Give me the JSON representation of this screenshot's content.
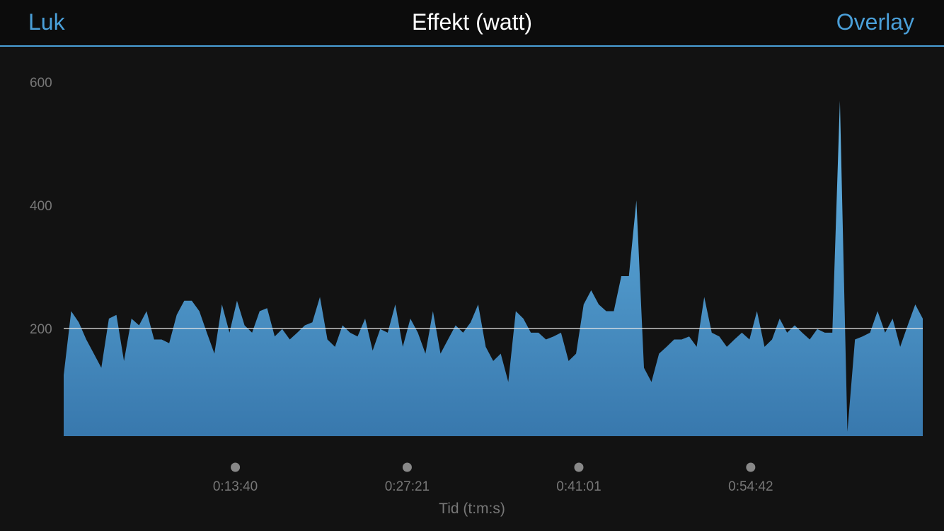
{
  "header": {
    "left_button": "Luk",
    "title": "Effekt (watt)",
    "right_button": "Overlay"
  },
  "chart_data": {
    "type": "area",
    "x_label": "Tid (t:m:s)",
    "x": [
      0,
      36,
      72,
      108,
      144,
      180,
      216,
      252,
      288,
      324,
      360,
      396,
      432,
      468,
      504,
      540,
      576,
      612,
      648,
      684,
      720,
      756,
      792,
      828,
      864,
      900,
      936,
      972,
      1008,
      1044,
      1080,
      1116,
      1152,
      1188,
      1224,
      1260,
      1296,
      1332,
      1368,
      1404,
      1440,
      1476,
      1512,
      1548,
      1584,
      1620,
      1656,
      1692,
      1728,
      1764,
      1800,
      1836,
      1872,
      1908,
      1944,
      1980,
      2016,
      2052,
      2088,
      2124,
      2160,
      2196,
      2232,
      2268,
      2304,
      2340,
      2376,
      2412,
      2448,
      2484,
      2520,
      2556,
      2592,
      2628,
      2664,
      2700,
      2736,
      2772,
      2808,
      2844,
      2880,
      2916,
      2952,
      2988,
      3024,
      3060,
      3096,
      3132,
      3168,
      3204,
      3240,
      3276,
      3312,
      3348,
      3384,
      3420,
      3456,
      3492,
      3528,
      3564,
      3600,
      3636,
      3672,
      3708,
      3744,
      3780,
      3816,
      3852,
      3888,
      3924,
      3960,
      3996,
      4032,
      4068,
      4104
    ],
    "values": [
      124,
      228,
      210,
      182,
      159,
      136,
      216,
      222,
      147,
      216,
      205,
      228,
      182,
      182,
      176,
      222,
      245,
      245,
      228,
      193,
      159,
      239,
      193,
      245,
      205,
      193,
      228,
      233,
      187,
      199,
      182,
      193,
      205,
      210,
      251,
      182,
      170,
      205,
      193,
      187,
      216,
      164,
      199,
      193,
      239,
      170,
      216,
      193,
      159,
      228,
      159,
      182,
      205,
      193,
      210,
      239,
      170,
      147,
      159,
      113,
      228,
      216,
      193,
      193,
      182,
      187,
      193,
      147,
      159,
      239,
      262,
      239,
      228,
      228,
      285,
      285,
      408,
      136,
      113,
      159,
      170,
      182,
      182,
      187,
      170,
      251,
      193,
      187,
      170,
      182,
      193,
      182,
      228,
      170,
      182,
      216,
      193,
      205,
      193,
      182,
      199,
      193,
      193,
      570,
      32,
      182,
      187,
      193,
      228,
      193,
      216,
      170,
      205,
      239,
      216
    ],
    "color": "#4f9fd6",
    "xlim": [
      0,
      4104
    ],
    "xticks": [
      {
        "value": 820,
        "label": "0:13:40"
      },
      {
        "value": 1641,
        "label": "0:27:21"
      },
      {
        "value": 2461,
        "label": "0:41:01"
      },
      {
        "value": 3282,
        "label": "0:54:42"
      }
    ],
    "ylim": [
      25,
      645
    ],
    "yticks": [
      200,
      400,
      600
    ],
    "reference_line": 200
  }
}
